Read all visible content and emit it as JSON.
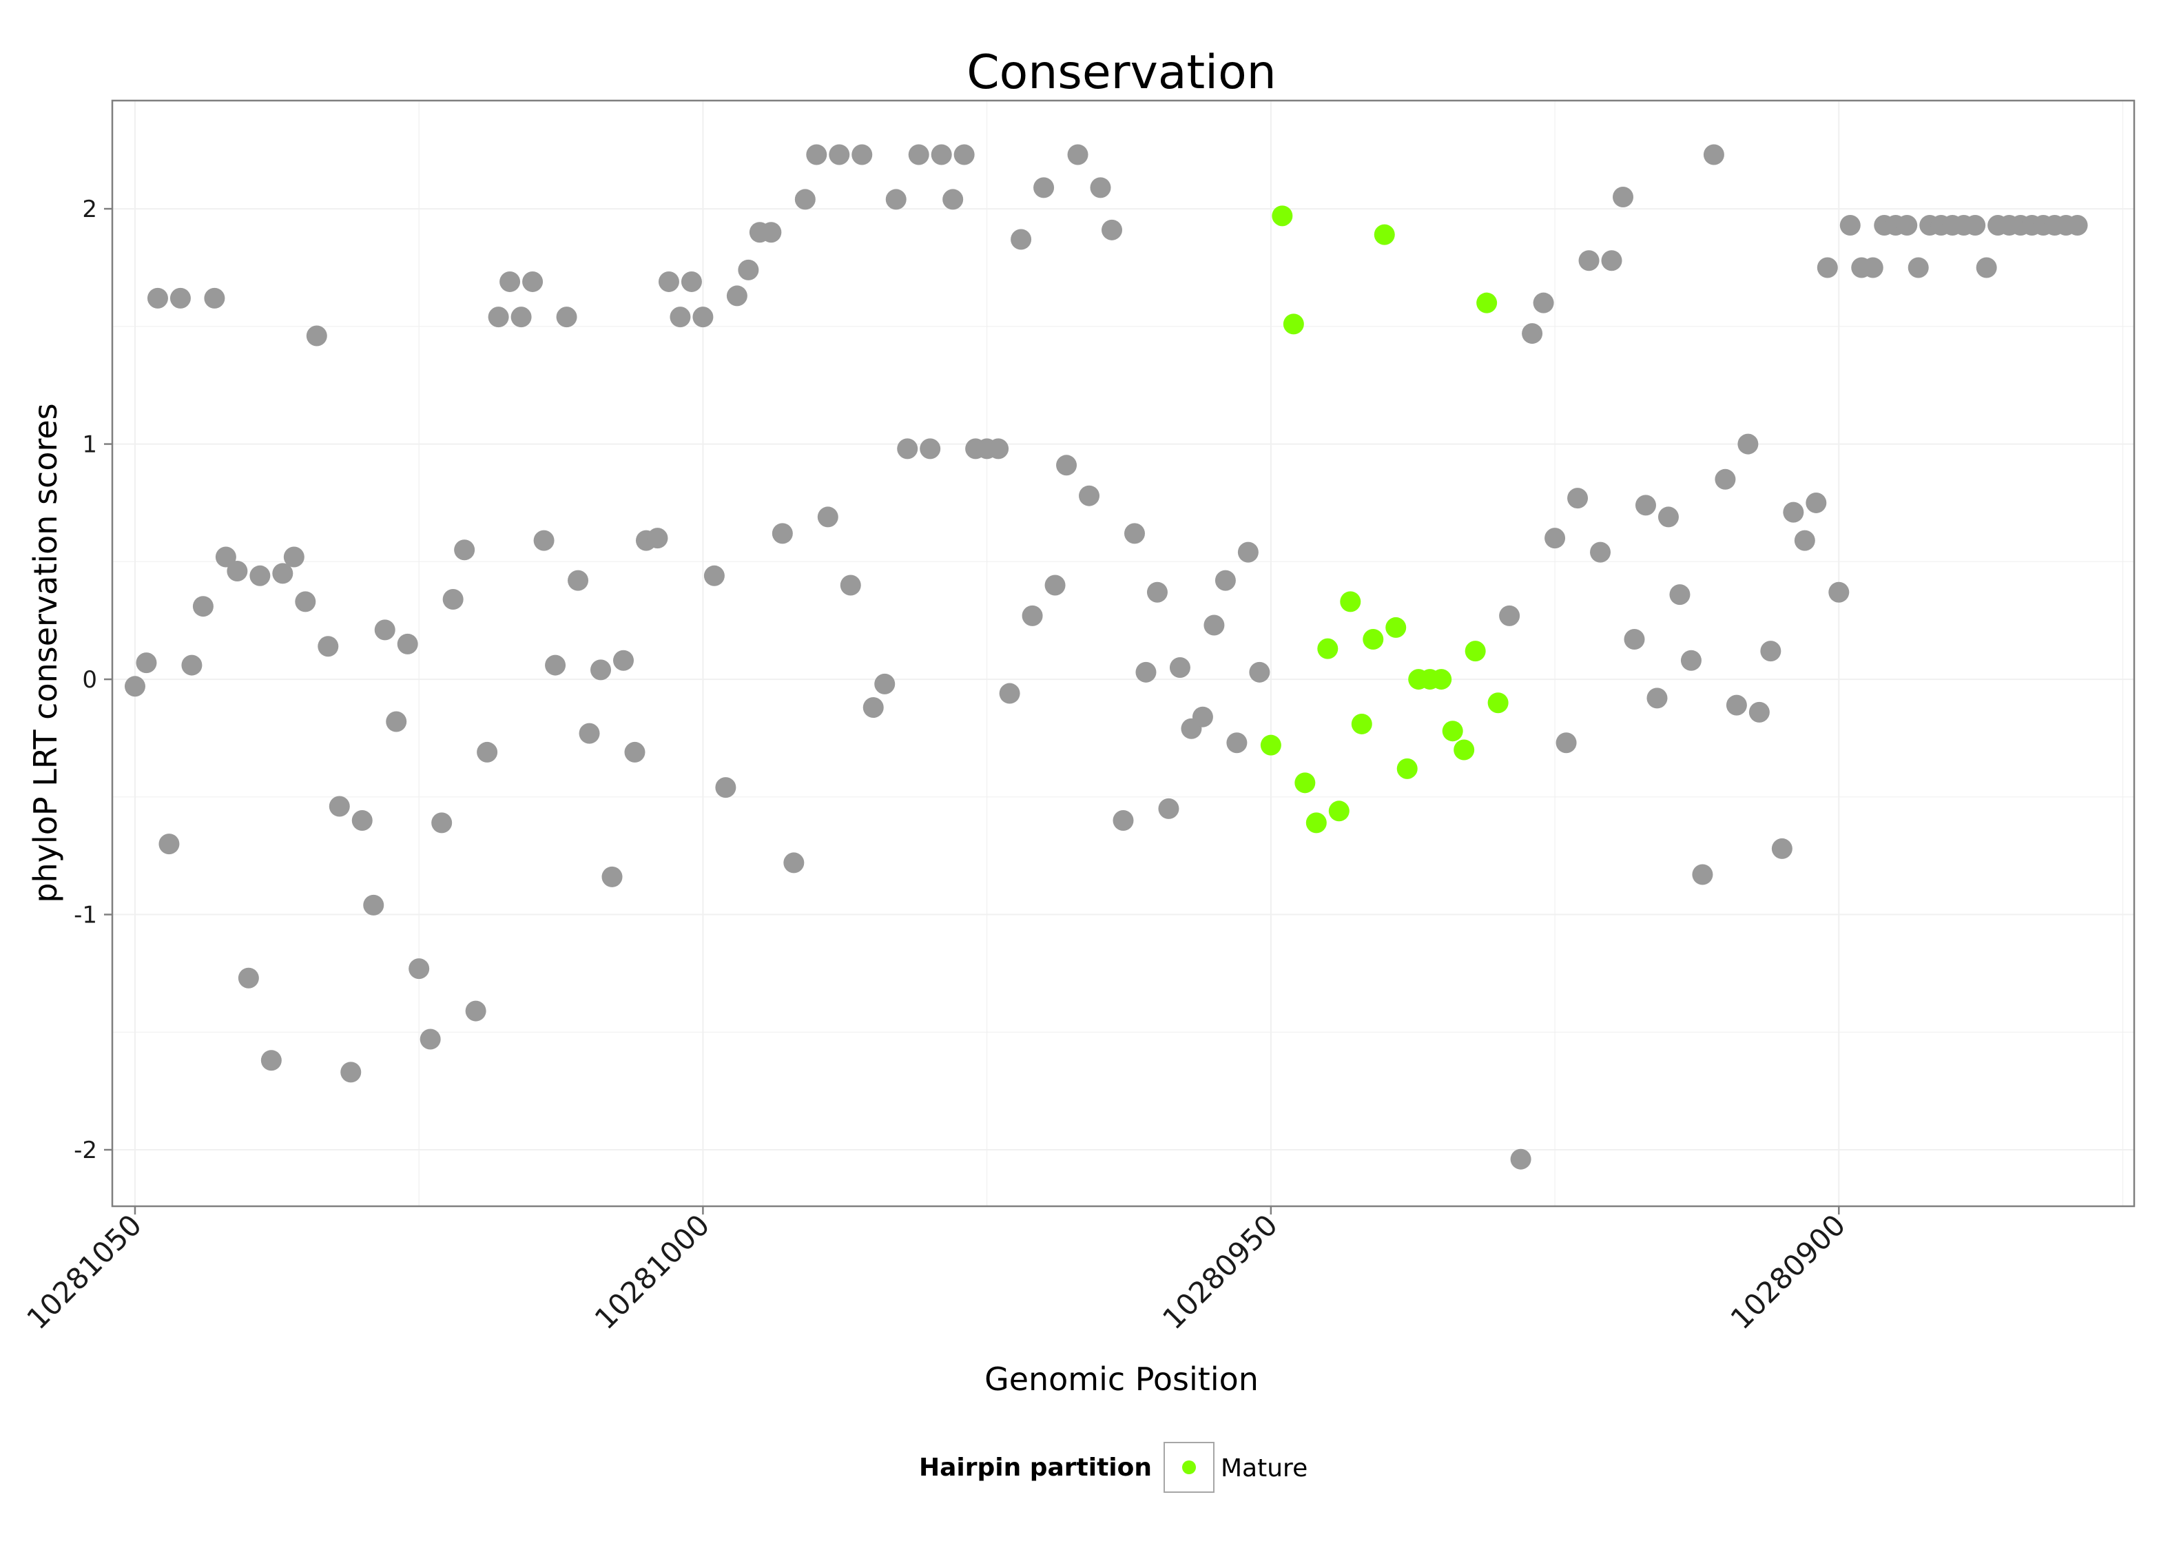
{
  "chart_data": {
    "type": "scatter",
    "title": "Conservation",
    "xlabel": "Genomic Position",
    "ylabel": "phyloP LRT conservation scores",
    "x_reversed": true,
    "xlim": [
      10281052,
      10280874
    ],
    "ylim": [
      -2.24,
      2.46
    ],
    "x_ticks": [
      10281050,
      10281000,
      10280950,
      10280900
    ],
    "y_ticks": [
      -2,
      -1,
      0,
      1,
      2
    ],
    "x_tick_labels": [
      "10281050",
      "10281000",
      "10280950",
      "10280900"
    ],
    "y_tick_labels": [
      "-2",
      "-1",
      "0",
      "1",
      "2"
    ],
    "grid": true,
    "legend": {
      "title": "Hairpin partition",
      "position": "bottom",
      "entries": [
        {
          "label": "Mature",
          "color": "#7fff00"
        }
      ]
    },
    "colors": {
      "background": "#ffffff",
      "other_points": "#999999",
      "mature_points": "#7fff00",
      "panel_border": "#7f7f7f",
      "grid": "#f0f0f0"
    },
    "series": [
      {
        "name": "",
        "color": "#999999",
        "points": [
          [
            10281050,
            -0.03
          ],
          [
            10281049,
            0.07
          ],
          [
            10281048,
            1.62
          ],
          [
            10281047,
            -0.7
          ],
          [
            10281046,
            1.62
          ],
          [
            10281045,
            0.06
          ],
          [
            10281044,
            0.31
          ],
          [
            10281043,
            1.62
          ],
          [
            10281042,
            0.52
          ],
          [
            10281041,
            0.46
          ],
          [
            10281040,
            -1.27
          ],
          [
            10281039,
            0.44
          ],
          [
            10281038,
            -1.62
          ],
          [
            10281037,
            0.45
          ],
          [
            10281036,
            0.52
          ],
          [
            10281035,
            0.33
          ],
          [
            10281034,
            1.46
          ],
          [
            10281033,
            0.14
          ],
          [
            10281032,
            -0.54
          ],
          [
            10281031,
            -1.67
          ],
          [
            10281030,
            -0.6
          ],
          [
            10281029,
            -0.96
          ],
          [
            10281028,
            0.21
          ],
          [
            10281027,
            -0.18
          ],
          [
            10281026,
            0.15
          ],
          [
            10281025,
            -1.23
          ],
          [
            10281024,
            -1.53
          ],
          [
            10281023,
            -0.61
          ],
          [
            10281022,
            0.34
          ],
          [
            10281021,
            0.55
          ],
          [
            10281020,
            -1.41
          ],
          [
            10281019,
            -0.31
          ],
          [
            10281018,
            1.54
          ],
          [
            10281017,
            1.69
          ],
          [
            10281016,
            1.54
          ],
          [
            10281015,
            1.69
          ],
          [
            10281014,
            0.59
          ],
          [
            10281013,
            0.06
          ],
          [
            10281012,
            1.54
          ],
          [
            10281011,
            0.42
          ],
          [
            10281010,
            -0.23
          ],
          [
            10281009,
            0.04
          ],
          [
            10281008,
            -0.84
          ],
          [
            10281007,
            0.08
          ],
          [
            10281006,
            -0.31
          ],
          [
            10281005,
            0.59
          ],
          [
            10281004,
            0.6
          ],
          [
            10281003,
            1.69
          ],
          [
            10281002,
            1.54
          ],
          [
            10281001,
            1.69
          ],
          [
            10281000,
            1.54
          ],
          [
            10280999,
            0.44
          ],
          [
            10280998,
            -0.46
          ],
          [
            10280997,
            1.63
          ],
          [
            10280996,
            1.74
          ],
          [
            10280995,
            1.9
          ],
          [
            10280994,
            1.9
          ],
          [
            10280993,
            0.62
          ],
          [
            10280992,
            -0.78
          ],
          [
            10280991,
            2.04
          ],
          [
            10280990,
            2.23
          ],
          [
            10280989,
            0.69
          ],
          [
            10280988,
            2.23
          ],
          [
            10280987,
            0.4
          ],
          [
            10280986,
            2.23
          ],
          [
            10280985,
            -0.12
          ],
          [
            10280984,
            -0.02
          ],
          [
            10280983,
            2.04
          ],
          [
            10280982,
            0.98
          ],
          [
            10280981,
            2.23
          ],
          [
            10280980,
            0.98
          ],
          [
            10280979,
            2.23
          ],
          [
            10280978,
            2.04
          ],
          [
            10280977,
            2.23
          ],
          [
            10280976,
            0.98
          ],
          [
            10280975,
            0.98
          ],
          [
            10280974,
            0.98
          ],
          [
            10280973,
            -0.06
          ],
          [
            10280972,
            1.87
          ],
          [
            10280971,
            0.27
          ],
          [
            10280970,
            2.09
          ],
          [
            10280969,
            0.4
          ],
          [
            10280968,
            0.91
          ],
          [
            10280967,
            2.23
          ],
          [
            10280966,
            0.78
          ],
          [
            10280965,
            2.09
          ],
          [
            10280964,
            1.91
          ],
          [
            10280963,
            -0.6
          ],
          [
            10280962,
            0.62
          ],
          [
            10280961,
            0.03
          ],
          [
            10280960,
            0.37
          ],
          [
            10280959,
            -0.55
          ],
          [
            10280958,
            0.05
          ],
          [
            10280957,
            -0.21
          ],
          [
            10280956,
            -0.16
          ],
          [
            10280955,
            0.23
          ],
          [
            10280954,
            0.42
          ],
          [
            10280953,
            -0.27
          ],
          [
            10280952,
            0.54
          ],
          [
            10280951,
            0.03
          ],
          [
            10280929,
            0.27
          ],
          [
            10280928,
            -2.04
          ],
          [
            10280927,
            1.47
          ],
          [
            10280926,
            1.6
          ],
          [
            10280925,
            0.6
          ],
          [
            10280924,
            -0.27
          ],
          [
            10280923,
            0.77
          ],
          [
            10280922,
            1.78
          ],
          [
            10280921,
            0.54
          ],
          [
            10280920,
            1.78
          ],
          [
            10280919,
            2.05
          ],
          [
            10280918,
            0.17
          ],
          [
            10280917,
            0.74
          ],
          [
            10280916,
            -0.08
          ],
          [
            10280915,
            0.69
          ],
          [
            10280914,
            0.36
          ],
          [
            10280913,
            0.08
          ],
          [
            10280912,
            -0.83
          ],
          [
            10280911,
            2.23
          ],
          [
            10280910,
            0.85
          ],
          [
            10280909,
            -0.11
          ],
          [
            10280908,
            1.0
          ],
          [
            10280907,
            -0.14
          ],
          [
            10280906,
            0.12
          ],
          [
            10280905,
            -0.72
          ],
          [
            10280904,
            0.71
          ],
          [
            10280903,
            0.59
          ],
          [
            10280902,
            0.75
          ],
          [
            10280901,
            1.75
          ],
          [
            10280900,
            0.37
          ],
          [
            10280899,
            1.93
          ],
          [
            10280898,
            1.75
          ],
          [
            10280897,
            1.75
          ],
          [
            10280896,
            1.93
          ],
          [
            10280895,
            1.93
          ],
          [
            10280894,
            1.93
          ],
          [
            10280893,
            1.75
          ],
          [
            10280892,
            1.93
          ],
          [
            10280891,
            1.93
          ],
          [
            10280890,
            1.93
          ],
          [
            10280889,
            1.93
          ],
          [
            10280888,
            1.93
          ],
          [
            10280887,
            1.75
          ],
          [
            10280886,
            1.93
          ],
          [
            10280885,
            1.93
          ],
          [
            10280884,
            1.93
          ],
          [
            10280883,
            1.93
          ],
          [
            10280882,
            1.93
          ],
          [
            10280881,
            1.93
          ],
          [
            10280880,
            1.93
          ],
          [
            10280879,
            1.93
          ]
        ]
      },
      {
        "name": "Mature",
        "color": "#7fff00",
        "points": [
          [
            10280950,
            -0.28
          ],
          [
            10280949,
            1.97
          ],
          [
            10280948,
            1.51
          ],
          [
            10280947,
            -0.44
          ],
          [
            10280946,
            -0.61
          ],
          [
            10280945,
            0.13
          ],
          [
            10280944,
            -0.56
          ],
          [
            10280943,
            0.33
          ],
          [
            10280942,
            -0.19
          ],
          [
            10280941,
            0.17
          ],
          [
            10280940,
            1.89
          ],
          [
            10280939,
            0.22
          ],
          [
            10280938,
            -0.38
          ],
          [
            10280937,
            0.0
          ],
          [
            10280936,
            0.0
          ],
          [
            10280935,
            0.0
          ],
          [
            10280934,
            -0.22
          ],
          [
            10280933,
            -0.3
          ],
          [
            10280932,
            0.12
          ],
          [
            10280931,
            1.6
          ],
          [
            10280930,
            -0.1
          ]
        ]
      }
    ]
  }
}
